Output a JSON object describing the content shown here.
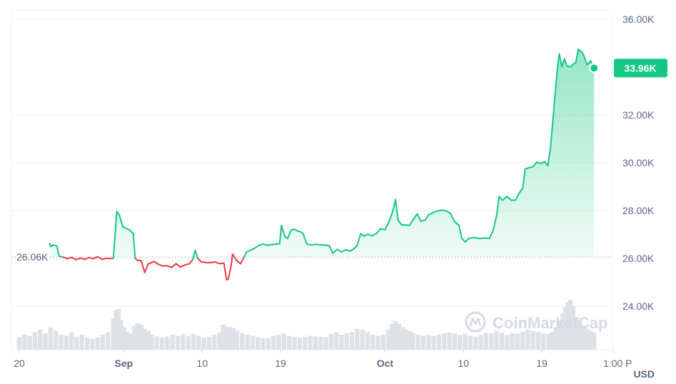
{
  "chart_data": {
    "type": "line",
    "y_unit": "USD",
    "ylim": [
      23000,
      36500
    ],
    "y_ticks": [
      {
        "value": 36000,
        "label": "36.00K"
      },
      {
        "value": 32000,
        "label": "32.00K"
      },
      {
        "value": 30000,
        "label": "30.00K"
      },
      {
        "value": 28000,
        "label": "28.00K"
      },
      {
        "value": 26000,
        "label": "26.00K"
      },
      {
        "value": 24000,
        "label": "24.00K"
      }
    ],
    "x_ticks": [
      {
        "day": 0,
        "label": "20"
      },
      {
        "day": 12,
        "label": "Sep"
      },
      {
        "day": 21,
        "label": "10"
      },
      {
        "day": 30,
        "label": "19"
      },
      {
        "day": 42,
        "label": "Oct"
      },
      {
        "day": 51,
        "label": "10"
      },
      {
        "day": 60,
        "label": "19"
      },
      {
        "day": 68.2,
        "label": "1:00 P"
      }
    ],
    "baseline": {
      "value": 26060,
      "label": "26.06K"
    },
    "current": {
      "value": 33960,
      "label": "33.96K"
    },
    "colors": {
      "up": "#16c784",
      "down": "#ea3943",
      "volume": "#dee1e6",
      "grid": "#eff2f5"
    },
    "watermark": "CoinMarketCap",
    "series": [
      {
        "points": [
          [
            3.5,
            26620
          ],
          [
            3.6,
            26500
          ],
          [
            3.9,
            26560
          ],
          [
            4.3,
            26520
          ],
          [
            4.6,
            26080
          ],
          [
            5.0,
            26060
          ],
          [
            5.5,
            25990
          ],
          [
            6,
            26040
          ],
          [
            6.5,
            25950
          ],
          [
            7,
            26010
          ],
          [
            7.5,
            25960
          ],
          [
            8,
            26030
          ],
          [
            8.5,
            25990
          ],
          [
            9,
            26070
          ],
          [
            9.5,
            25960
          ],
          [
            10,
            26000
          ],
          [
            10.5,
            25990
          ],
          [
            10.8,
            26010
          ],
          [
            11.2,
            27960
          ],
          [
            11.5,
            27800
          ],
          [
            11.9,
            27320
          ],
          [
            12.3,
            27250
          ],
          [
            12.7,
            27180
          ],
          [
            13.1,
            27030
          ],
          [
            13.3,
            26000
          ],
          [
            13.6,
            25920
          ],
          [
            14.0,
            25900
          ],
          [
            14.4,
            25410
          ],
          [
            14.8,
            25770
          ],
          [
            15.5,
            25870
          ],
          [
            16,
            25750
          ],
          [
            16.5,
            25680
          ],
          [
            17,
            25690
          ],
          [
            17.5,
            25620
          ],
          [
            18,
            25780
          ],
          [
            18.5,
            25640
          ],
          [
            19,
            25720
          ],
          [
            19.5,
            25770
          ],
          [
            19.9,
            25930
          ],
          [
            20.2,
            26330
          ],
          [
            20.5,
            26000
          ],
          [
            20.9,
            25850
          ],
          [
            21.5,
            25820
          ],
          [
            22,
            25820
          ],
          [
            22.5,
            25850
          ],
          [
            23,
            25780
          ],
          [
            23.5,
            25800
          ],
          [
            23.8,
            25110
          ],
          [
            24.0,
            25130
          ],
          [
            24.3,
            25650
          ],
          [
            24.5,
            26180
          ],
          [
            24.9,
            25930
          ],
          [
            25.4,
            25780
          ],
          [
            25.8,
            26040
          ],
          [
            26.1,
            26270
          ],
          [
            26.5,
            26330
          ],
          [
            27,
            26420
          ],
          [
            27.5,
            26540
          ],
          [
            28,
            26600
          ],
          [
            28.5,
            26550
          ],
          [
            29,
            26580
          ],
          [
            29.5,
            26600
          ],
          [
            29.9,
            26620
          ],
          [
            30.1,
            27380
          ],
          [
            30.5,
            26920
          ],
          [
            30.8,
            26830
          ],
          [
            31.2,
            27180
          ],
          [
            31.6,
            27220
          ],
          [
            32.0,
            27140
          ],
          [
            32.3,
            27110
          ],
          [
            32.6,
            27040
          ],
          [
            33,
            26610
          ],
          [
            33.5,
            26560
          ],
          [
            34,
            26590
          ],
          [
            34.5,
            26570
          ],
          [
            35,
            26560
          ],
          [
            35.6,
            26530
          ],
          [
            36,
            26210
          ],
          [
            36.5,
            26380
          ],
          [
            37,
            26270
          ],
          [
            37.5,
            26360
          ],
          [
            38,
            26300
          ],
          [
            38.4,
            26400
          ],
          [
            38.8,
            26540
          ],
          [
            39.2,
            27030
          ],
          [
            39.6,
            26930
          ],
          [
            40,
            27010
          ],
          [
            40.5,
            26940
          ],
          [
            41,
            27040
          ],
          [
            41.5,
            27240
          ],
          [
            42,
            27200
          ],
          [
            42.4,
            27500
          ],
          [
            42.9,
            27980
          ],
          [
            43.2,
            28460
          ],
          [
            43.5,
            27600
          ],
          [
            43.9,
            27400
          ],
          [
            44.3,
            27400
          ],
          [
            44.8,
            27380
          ],
          [
            45.2,
            27600
          ],
          [
            45.7,
            27860
          ],
          [
            46.1,
            27560
          ],
          [
            46.6,
            27600
          ],
          [
            47,
            27820
          ],
          [
            47.5,
            27910
          ],
          [
            48,
            27980
          ],
          [
            48.5,
            28020
          ],
          [
            49,
            27990
          ],
          [
            49.5,
            27880
          ],
          [
            50,
            27530
          ],
          [
            50.5,
            27380
          ],
          [
            50.8,
            26850
          ],
          [
            51.2,
            26690
          ],
          [
            51.6,
            26830
          ],
          [
            52.2,
            26870
          ],
          [
            52.8,
            26830
          ],
          [
            53.4,
            26850
          ],
          [
            54,
            26840
          ],
          [
            54.4,
            27160
          ],
          [
            54.8,
            27770
          ],
          [
            55.1,
            28580
          ],
          [
            55.5,
            28430
          ],
          [
            56,
            28590
          ],
          [
            56.5,
            28430
          ],
          [
            57,
            28440
          ],
          [
            57.4,
            28730
          ],
          [
            57.8,
            28940
          ],
          [
            58.1,
            29740
          ],
          [
            58.6,
            29800
          ],
          [
            59,
            29830
          ],
          [
            59.4,
            30020
          ],
          [
            59.9,
            29970
          ],
          [
            60.3,
            30050
          ],
          [
            60.7,
            29880
          ],
          [
            61.0,
            30640
          ],
          [
            61.2,
            31460
          ],
          [
            61.5,
            32740
          ],
          [
            61.8,
            33980
          ],
          [
            62.0,
            34550
          ],
          [
            62.3,
            34020
          ],
          [
            62.6,
            34350
          ],
          [
            62.9,
            34050
          ],
          [
            63.3,
            34010
          ],
          [
            63.6,
            34120
          ],
          [
            63.9,
            34190
          ],
          [
            64.2,
            34740
          ],
          [
            64.6,
            34640
          ],
          [
            64.9,
            34420
          ],
          [
            65.2,
            34100
          ],
          [
            65.6,
            34260
          ],
          [
            66.0,
            33960
          ]
        ]
      }
    ],
    "volume": [
      [
        0,
        0.25
      ],
      [
        0.6,
        0.3
      ],
      [
        1.2,
        0.28
      ],
      [
        1.8,
        0.35
      ],
      [
        2.4,
        0.4
      ],
      [
        3,
        0.33
      ],
      [
        3.6,
        0.45
      ],
      [
        4.2,
        0.38
      ],
      [
        4.8,
        0.3
      ],
      [
        5.4,
        0.28
      ],
      [
        6,
        0.35
      ],
      [
        6.6,
        0.26
      ],
      [
        7.2,
        0.3
      ],
      [
        7.8,
        0.24
      ],
      [
        8.4,
        0.22
      ],
      [
        9,
        0.25
      ],
      [
        9.6,
        0.3
      ],
      [
        10.2,
        0.35
      ],
      [
        10.8,
        0.62
      ],
      [
        11.1,
        0.78
      ],
      [
        11.4,
        0.82
      ],
      [
        11.7,
        0.6
      ],
      [
        12,
        0.45
      ],
      [
        12.4,
        0.36
      ],
      [
        12.8,
        0.32
      ],
      [
        13.2,
        0.48
      ],
      [
        13.6,
        0.53
      ],
      [
        14,
        0.5
      ],
      [
        14.4,
        0.42
      ],
      [
        14.8,
        0.38
      ],
      [
        15.2,
        0.3
      ],
      [
        15.8,
        0.27
      ],
      [
        16.4,
        0.24
      ],
      [
        17,
        0.26
      ],
      [
        17.6,
        0.3
      ],
      [
        18.2,
        0.28
      ],
      [
        18.8,
        0.31
      ],
      [
        19.4,
        0.27
      ],
      [
        20,
        0.32
      ],
      [
        20.6,
        0.28
      ],
      [
        21.2,
        0.24
      ],
      [
        21.8,
        0.26
      ],
      [
        22.4,
        0.3
      ],
      [
        23,
        0.34
      ],
      [
        23.4,
        0.5
      ],
      [
        23.8,
        0.46
      ],
      [
        24.2,
        0.45
      ],
      [
        24.6,
        0.43
      ],
      [
        25,
        0.38
      ],
      [
        25.6,
        0.33
      ],
      [
        26.2,
        0.3
      ],
      [
        26.8,
        0.28
      ],
      [
        27.4,
        0.25
      ],
      [
        28,
        0.23
      ],
      [
        28.6,
        0.24
      ],
      [
        29.2,
        0.28
      ],
      [
        29.8,
        0.3
      ],
      [
        30.4,
        0.33
      ],
      [
        31,
        0.28
      ],
      [
        31.6,
        0.26
      ],
      [
        32.2,
        0.24
      ],
      [
        32.8,
        0.26
      ],
      [
        33.4,
        0.28
      ],
      [
        34,
        0.27
      ],
      [
        34.6,
        0.26
      ],
      [
        35.2,
        0.25
      ],
      [
        35.8,
        0.32
      ],
      [
        36.4,
        0.35
      ],
      [
        37,
        0.3
      ],
      [
        37.6,
        0.33
      ],
      [
        38.2,
        0.36
      ],
      [
        38.8,
        0.42
      ],
      [
        39.4,
        0.4
      ],
      [
        40,
        0.35
      ],
      [
        40.6,
        0.3
      ],
      [
        41.2,
        0.28
      ],
      [
        41.8,
        0.3
      ],
      [
        42.4,
        0.4
      ],
      [
        42.8,
        0.52
      ],
      [
        43.2,
        0.58
      ],
      [
        43.6,
        0.52
      ],
      [
        44,
        0.45
      ],
      [
        44.4,
        0.4
      ],
      [
        44.8,
        0.38
      ],
      [
        45.2,
        0.34
      ],
      [
        45.8,
        0.3
      ],
      [
        46.4,
        0.28
      ],
      [
        47,
        0.3
      ],
      [
        47.6,
        0.27
      ],
      [
        48.2,
        0.3
      ],
      [
        48.8,
        0.33
      ],
      [
        49.4,
        0.35
      ],
      [
        50,
        0.33
      ],
      [
        50.6,
        0.3
      ],
      [
        51.2,
        0.32
      ],
      [
        51.8,
        0.28
      ],
      [
        52.4,
        0.26
      ],
      [
        53,
        0.3
      ],
      [
        53.6,
        0.34
      ],
      [
        54.2,
        0.33
      ],
      [
        54.8,
        0.38
      ],
      [
        55.4,
        0.34
      ],
      [
        56,
        0.3
      ],
      [
        56.6,
        0.33
      ],
      [
        57.2,
        0.32
      ],
      [
        57.8,
        0.36
      ],
      [
        58.4,
        0.4
      ],
      [
        59,
        0.38
      ],
      [
        59.6,
        0.35
      ],
      [
        60.2,
        0.33
      ],
      [
        60.8,
        0.32
      ],
      [
        61.2,
        0.35
      ],
      [
        61.6,
        0.45
      ],
      [
        62,
        0.58
      ],
      [
        62.4,
        0.72
      ],
      [
        62.7,
        0.85
      ],
      [
        63,
        0.95
      ],
      [
        63.3,
        1.0
      ],
      [
        63.6,
        0.88
      ],
      [
        64,
        0.65
      ],
      [
        64.4,
        0.55
      ],
      [
        64.8,
        0.48
      ],
      [
        65.2,
        0.42
      ],
      [
        65.6,
        0.38
      ],
      [
        66,
        0.35
      ]
    ]
  }
}
